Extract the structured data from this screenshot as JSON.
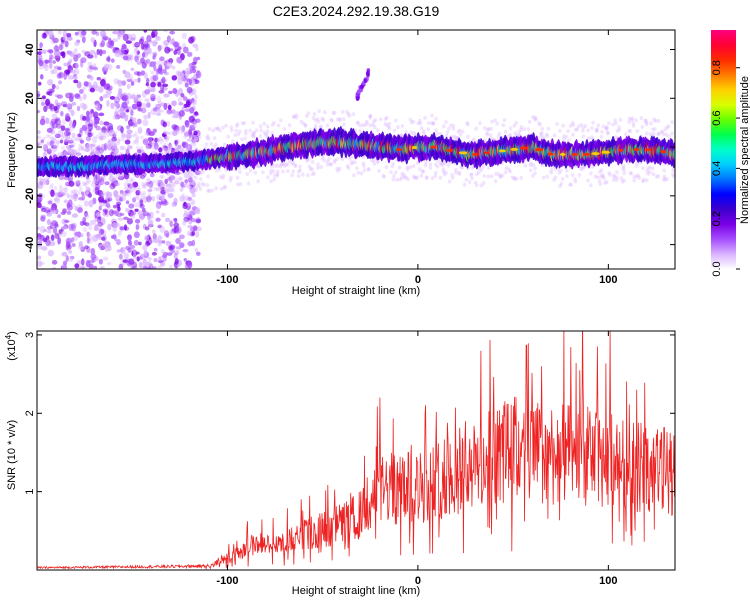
{
  "figure": {
    "title": "C2E3.2024.292.19.38.G19"
  },
  "chart_data": [
    {
      "type": "heatmap",
      "xlabel": "Height of straight line (km)",
      "ylabel": "Frequency (Hz)",
      "xlim": [
        -200,
        135
      ],
      "ylim": [
        -50,
        48
      ],
      "x_ticks": [
        -100,
        0,
        100
      ],
      "y_ticks": [
        -40,
        -20,
        0,
        20,
        40
      ],
      "colorbar": {
        "label": "Normalized spectral amplitude",
        "range": [
          0,
          0.95
        ],
        "ticks": [
          "0.0",
          "0.2",
          "0.4",
          "0.6",
          "0.8"
        ],
        "colors": [
          "#ffffff",
          "#d9b3ff",
          "#a64dff",
          "#7a00e6",
          "#3d00cc",
          "#0000ff",
          "#0073ff",
          "#00cfff",
          "#00ffc8",
          "#00ff4d",
          "#66ff00",
          "#d9ff00",
          "#ffd000",
          "#ff7a00",
          "#ff2a00",
          "#ff0033",
          "#ff0080"
        ]
      },
      "ridge": {
        "x": [
          -200,
          -180,
          -160,
          -140,
          -120,
          -110,
          -100,
          -90,
          -80,
          -70,
          -60,
          -50,
          -40,
          -30,
          -20,
          -10,
          0,
          10,
          20,
          30,
          40,
          50,
          60,
          70,
          80,
          90,
          100,
          110,
          120,
          130,
          135
        ],
        "y": [
          -8,
          -8,
          -7,
          -7,
          -6,
          -5,
          -4,
          -3,
          -2,
          0,
          1,
          2,
          2,
          1,
          0,
          -1,
          0,
          0,
          -2,
          -3,
          -2,
          -1,
          0,
          -3,
          -3,
          -3,
          -2,
          -1,
          -1,
          -2,
          -3
        ]
      },
      "secondary_branch": {
        "x": [
          -32,
          -30,
          -28,
          -26
        ],
        "y": [
          20,
          24,
          27,
          30
        ]
      }
    },
    {
      "type": "line",
      "xlabel": "Height of straight line (km)",
      "ylabel": "SNR (10 * v/v)",
      "y_multiplier": "(x10",
      "y_multiplier_exp": "4",
      "xlim": [
        -200,
        135
      ],
      "ylim": [
        0,
        3.05
      ],
      "x_ticks": [
        -100,
        0,
        100
      ],
      "y_ticks": [
        1,
        2,
        3
      ],
      "color": "#ee2222",
      "envelope": {
        "x": [
          -200,
          -150,
          -110,
          -95,
          -85,
          -75,
          -60,
          -45,
          -30,
          -20,
          -15,
          -10,
          0,
          10,
          20,
          30,
          40,
          50,
          60,
          70,
          80,
          90,
          100,
          110,
          120,
          135
        ],
        "y": [
          0.03,
          0.04,
          0.05,
          0.2,
          0.35,
          0.3,
          0.45,
          0.55,
          0.7,
          1.0,
          1.05,
          1.0,
          1.05,
          1.15,
          1.25,
          1.3,
          1.45,
          1.55,
          1.5,
          1.5,
          1.45,
          1.45,
          1.4,
          1.35,
          1.3,
          1.25
        ]
      },
      "peaks": [
        {
          "x": -20,
          "y": 2.2
        },
        {
          "x": -5,
          "y": 1.5
        },
        {
          "x": 25,
          "y": 1.9
        },
        {
          "x": 45,
          "y": 2.1
        },
        {
          "x": 57,
          "y": 2.87
        },
        {
          "x": 65,
          "y": 2.6
        },
        {
          "x": 85,
          "y": 2.55
        },
        {
          "x": 101,
          "y": 3.05
        },
        {
          "x": 115,
          "y": 2.3
        }
      ]
    }
  ]
}
